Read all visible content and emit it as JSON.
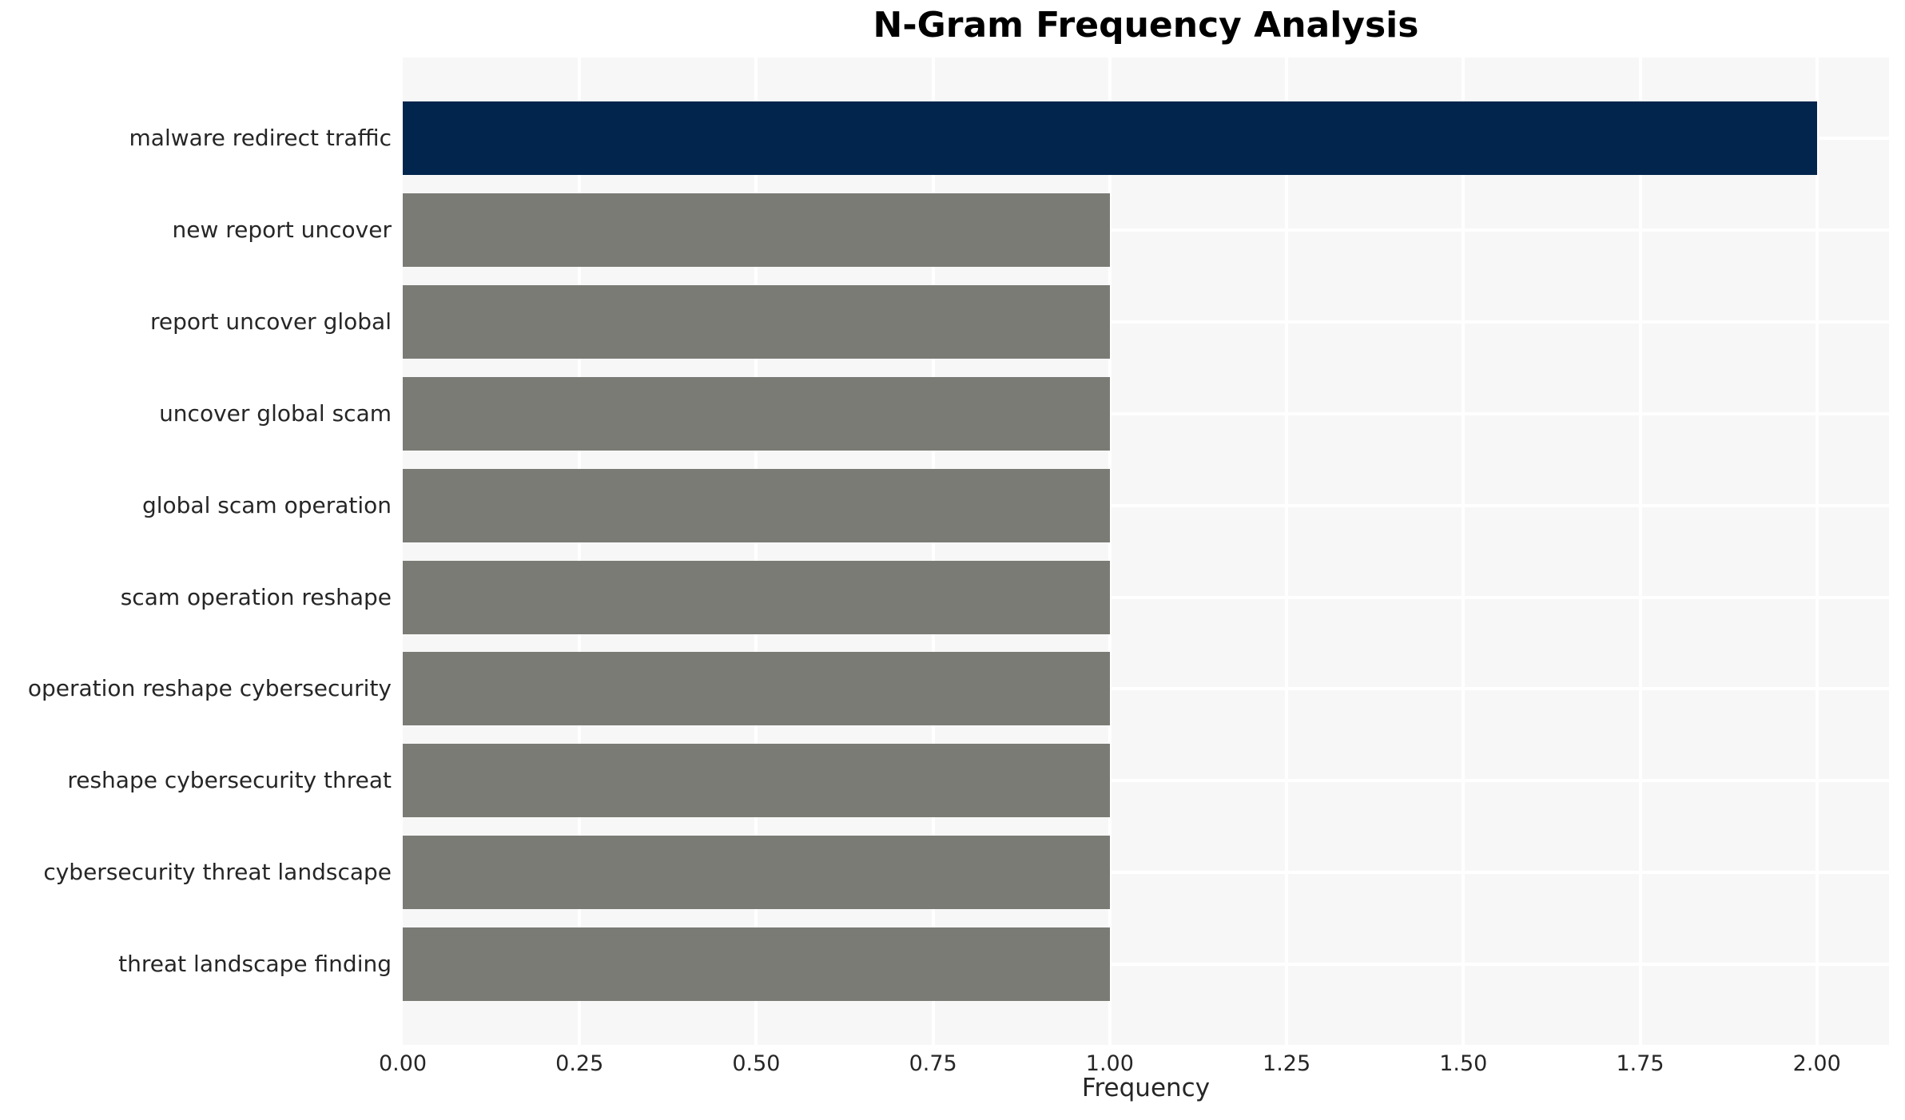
{
  "chart_data": {
    "type": "bar",
    "orientation": "horizontal",
    "title": "N-Gram Frequency Analysis",
    "xlabel": "Frequency",
    "ylabel": "",
    "categories": [
      "malware redirect traffic",
      "new report uncover",
      "report uncover global",
      "uncover global scam",
      "global scam operation",
      "scam operation reshape",
      "operation reshape cybersecurity",
      "reshape cybersecurity threat",
      "cybersecurity threat landscape",
      "threat landscape finding"
    ],
    "values": [
      2,
      1,
      1,
      1,
      1,
      1,
      1,
      1,
      1,
      1
    ],
    "xlim": [
      0,
      2.102
    ],
    "xtick_values": [
      0,
      0.25,
      0.5,
      0.75,
      1.0,
      1.25,
      1.5,
      1.75,
      2.0
    ],
    "xtick_labels": [
      "0.00",
      "0.25",
      "0.50",
      "0.75",
      "1.00",
      "1.25",
      "1.50",
      "1.75",
      "2.00"
    ],
    "grid": true,
    "legend": false,
    "colors": {
      "highlight_bar": "#02254d",
      "default_bar": "#7b7b76",
      "plot_background": "#f7f7f7",
      "grid_line": "#ffffff",
      "tick_text": "#262626",
      "title_text": "#000000"
    }
  }
}
